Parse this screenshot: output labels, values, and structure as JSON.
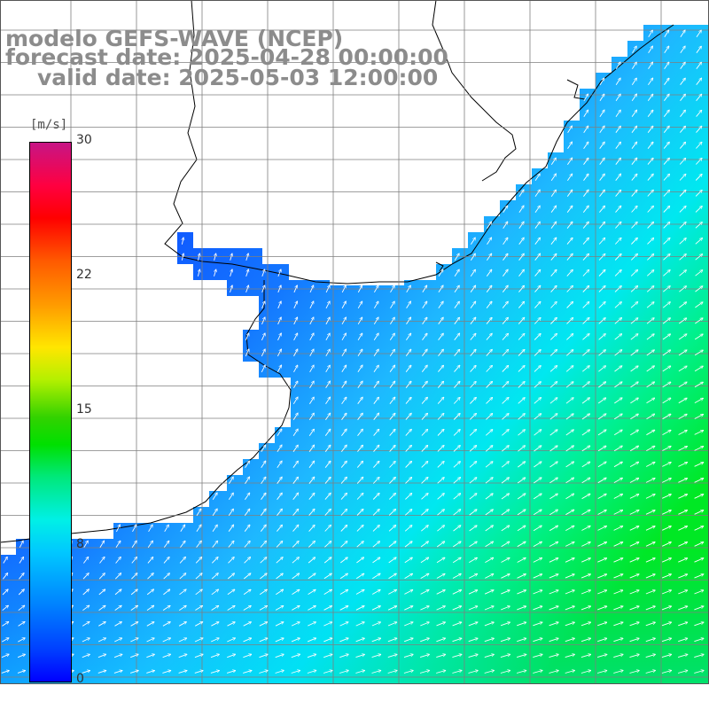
{
  "title": {
    "line1": "modelo GEFS-WAVE (NCEP)",
    "line2": "forecast date: 2025-04-28 00:00:00",
    "line3": "valid date: 2025-05-03 12:00:00"
  },
  "colorbar": {
    "units": "[m/s]",
    "ticks": [
      "30",
      "22",
      "15",
      "8",
      "0"
    ],
    "min": 0,
    "max": 30
  },
  "colors": {
    "land": "#ffffff",
    "grid": "#7f7f7f",
    "coast": "#000000",
    "arrow": "#ffffff",
    "title": "#8c8c8c"
  }
}
